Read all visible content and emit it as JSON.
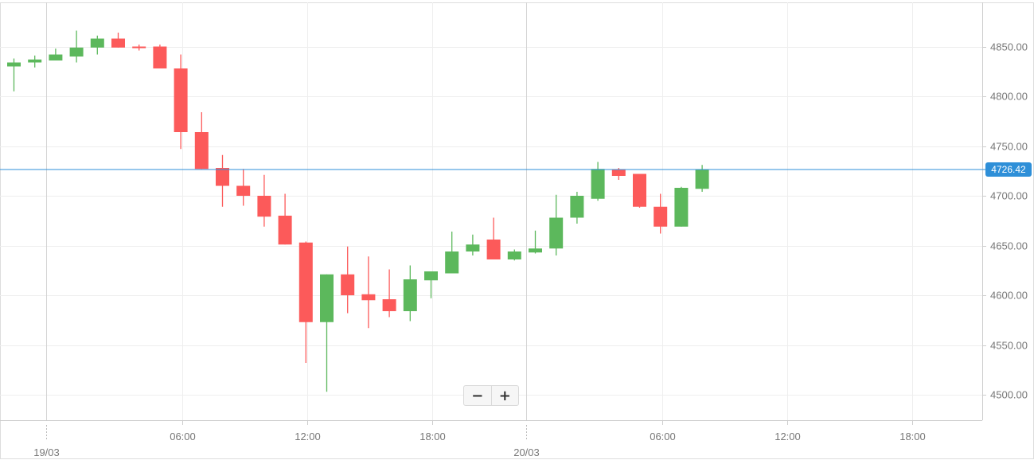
{
  "chart_data": {
    "type": "candlestick",
    "y_ticks": [
      "4850.00",
      "4800.00",
      "4750.00",
      "4700.00",
      "4650.00",
      "4600.00",
      "4550.00",
      "4500.00"
    ],
    "ylim": [
      4485,
      4893
    ],
    "x_ticks": [
      "06:00",
      "12:00",
      "18:00",
      "06:00",
      "12:00",
      "18:00"
    ],
    "date_labels": [
      "19/03",
      "20/03"
    ],
    "current_price": 4726.42,
    "current_price_label": "4726.42",
    "grid": true,
    "colors": {
      "up": "#5cb85c",
      "down": "#fc5a5a",
      "price_line": "#2e8fd8",
      "grid": "#eeeeee"
    },
    "candles": [
      {
        "o": 4830,
        "h": 4838,
        "l": 4805,
        "c": 4834
      },
      {
        "o": 4834,
        "h": 4841,
        "l": 4829,
        "c": 4837
      },
      {
        "o": 4836,
        "h": 4848,
        "l": 4836,
        "c": 4842
      },
      {
        "o": 4840,
        "h": 4866,
        "l": 4834,
        "c": 4849
      },
      {
        "o": 4849,
        "h": 4861,
        "l": 4842,
        "c": 4858
      },
      {
        "o": 4858,
        "h": 4864,
        "l": 4849,
        "c": 4849
      },
      {
        "o": 4850,
        "h": 4852,
        "l": 4846,
        "c": 4849
      },
      {
        "o": 4850,
        "h": 4852,
        "l": 4828,
        "c": 4828
      },
      {
        "o": 4828,
        "h": 4842,
        "l": 4747,
        "c": 4764
      },
      {
        "o": 4764,
        "h": 4784,
        "l": 4727,
        "c": 4727
      },
      {
        "o": 4728,
        "h": 4741,
        "l": 4689,
        "c": 4710
      },
      {
        "o": 4710,
        "h": 4727,
        "l": 4690,
        "c": 4700
      },
      {
        "o": 4700,
        "h": 4721,
        "l": 4669,
        "c": 4679
      },
      {
        "o": 4680,
        "h": 4702,
        "l": 4651,
        "c": 4651
      },
      {
        "o": 4653,
        "h": 4654,
        "l": 4532,
        "c": 4573
      },
      {
        "o": 4573,
        "h": 4621,
        "l": 4503,
        "c": 4621
      },
      {
        "o": 4621,
        "h": 4649,
        "l": 4582,
        "c": 4600
      },
      {
        "o": 4601,
        "h": 4639,
        "l": 4567,
        "c": 4595
      },
      {
        "o": 4596,
        "h": 4626,
        "l": 4578,
        "c": 4584
      },
      {
        "o": 4584,
        "h": 4630,
        "l": 4574,
        "c": 4616
      },
      {
        "o": 4615,
        "h": 4624,
        "l": 4597,
        "c": 4624
      },
      {
        "o": 4622,
        "h": 4664,
        "l": 4622,
        "c": 4644
      },
      {
        "o": 4644,
        "h": 4661,
        "l": 4640,
        "c": 4651
      },
      {
        "o": 4656,
        "h": 4678,
        "l": 4636,
        "c": 4636
      },
      {
        "o": 4636,
        "h": 4646,
        "l": 4635,
        "c": 4644
      },
      {
        "o": 4643,
        "h": 4665,
        "l": 4642,
        "c": 4647
      },
      {
        "o": 4647,
        "h": 4701,
        "l": 4640,
        "c": 4678
      },
      {
        "o": 4678,
        "h": 4704,
        "l": 4672,
        "c": 4700
      },
      {
        "o": 4697,
        "h": 4734,
        "l": 4695,
        "c": 4727
      },
      {
        "o": 4726,
        "h": 4728,
        "l": 4716,
        "c": 4720
      },
      {
        "o": 4722,
        "h": 4722,
        "l": 4688,
        "c": 4689
      },
      {
        "o": 4689,
        "h": 4702,
        "l": 4662,
        "c": 4669
      },
      {
        "o": 4669,
        "h": 4709,
        "l": 4669,
        "c": 4708
      },
      {
        "o": 4707,
        "h": 4731,
        "l": 4704,
        "c": 4726
      }
    ]
  },
  "zoom": {
    "minus_icon": "minus-icon",
    "plus_icon": "plus-icon",
    "minus": "−",
    "plus": "+"
  }
}
